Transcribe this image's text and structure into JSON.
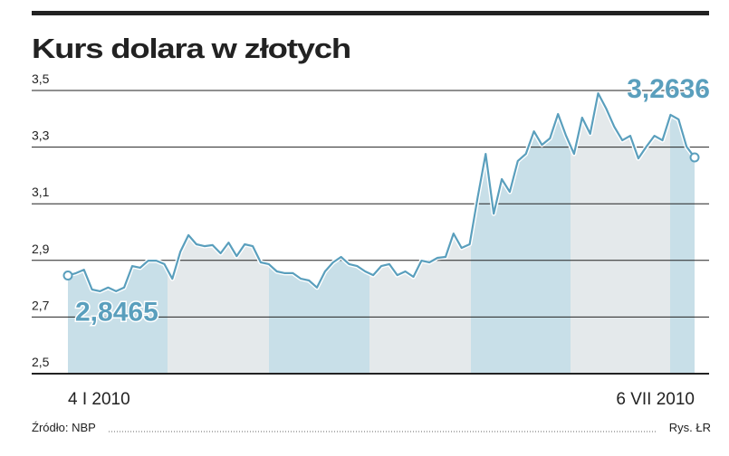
{
  "chart_data": {
    "type": "line",
    "title": "Kurs dolara w złotych",
    "categories": [
      "4 I 2010",
      null,
      null,
      null,
      null,
      null,
      null,
      null,
      null,
      null,
      null,
      null,
      null,
      null,
      null,
      null,
      null,
      null,
      null,
      null,
      null,
      null,
      null,
      null,
      null,
      null,
      null,
      null,
      null,
      null,
      null,
      null,
      null,
      null,
      null,
      null,
      null,
      null,
      null,
      null,
      null,
      null,
      null,
      null,
      null,
      null,
      null,
      null,
      null,
      null,
      null,
      null,
      null,
      null,
      null,
      null,
      null,
      null,
      null,
      null,
      null,
      null,
      null,
      null,
      null,
      null,
      null,
      null,
      null,
      null,
      null,
      null,
      null,
      null,
      null,
      null,
      null,
      null,
      "6 VII 2010"
    ],
    "values": [
      2.8465,
      2.855,
      2.867,
      2.797,
      2.791,
      2.804,
      2.791,
      2.804,
      2.88,
      2.874,
      2.899,
      2.899,
      2.887,
      2.835,
      2.931,
      2.989,
      2.957,
      2.95,
      2.954,
      2.925,
      2.963,
      2.915,
      2.957,
      2.95,
      2.893,
      2.887,
      2.861,
      2.855,
      2.855,
      2.835,
      2.829,
      2.804,
      2.861,
      2.893,
      2.912,
      2.887,
      2.88,
      2.861,
      2.848,
      2.88,
      2.887,
      2.848,
      2.861,
      2.842,
      2.899,
      2.893,
      2.909,
      2.912,
      2.995,
      2.944,
      2.957,
      3.123,
      3.276,
      3.065,
      3.187,
      3.142,
      3.251,
      3.276,
      3.356,
      3.308,
      3.331,
      3.417,
      3.34,
      3.276,
      3.404,
      3.347,
      3.49,
      3.436,
      3.372,
      3.324,
      3.34,
      3.26,
      3.302,
      3.34,
      3.324,
      3.414,
      3.398,
      3.302,
      3.2636
    ],
    "value_labels": [
      "2,8465",
      null,
      null,
      null,
      null,
      null,
      null,
      null,
      null,
      null,
      null,
      null,
      null,
      null,
      null,
      null,
      null,
      null,
      null,
      null,
      null,
      null,
      null,
      null,
      null,
      null,
      null,
      null,
      null,
      null,
      null,
      null,
      null,
      null,
      null,
      null,
      null,
      null,
      null,
      null,
      null,
      null,
      null,
      null,
      null,
      null,
      null,
      null,
      null,
      null,
      null,
      null,
      null,
      null,
      null,
      null,
      null,
      null,
      null,
      null,
      null,
      null,
      null,
      null,
      null,
      null,
      null,
      null,
      null,
      null,
      null,
      null,
      null,
      null,
      null,
      null,
      null,
      null,
      "3,2636"
    ],
    "color": "#5a9fbd",
    "ylim": [
      2.5,
      3.5
    ],
    "yticks": [
      {
        "value": 2.5,
        "label": "2,5"
      },
      {
        "value": 2.7,
        "label": "2,7"
      },
      {
        "value": 2.9,
        "label": "2,9"
      },
      {
        "value": 3.1,
        "label": "3,1"
      },
      {
        "value": 3.3,
        "label": "3,3"
      },
      {
        "value": 3.5,
        "label": "3,5"
      }
    ],
    "grid": true,
    "source": "Źródło: NBP",
    "credit": "Rys. ŁR"
  }
}
